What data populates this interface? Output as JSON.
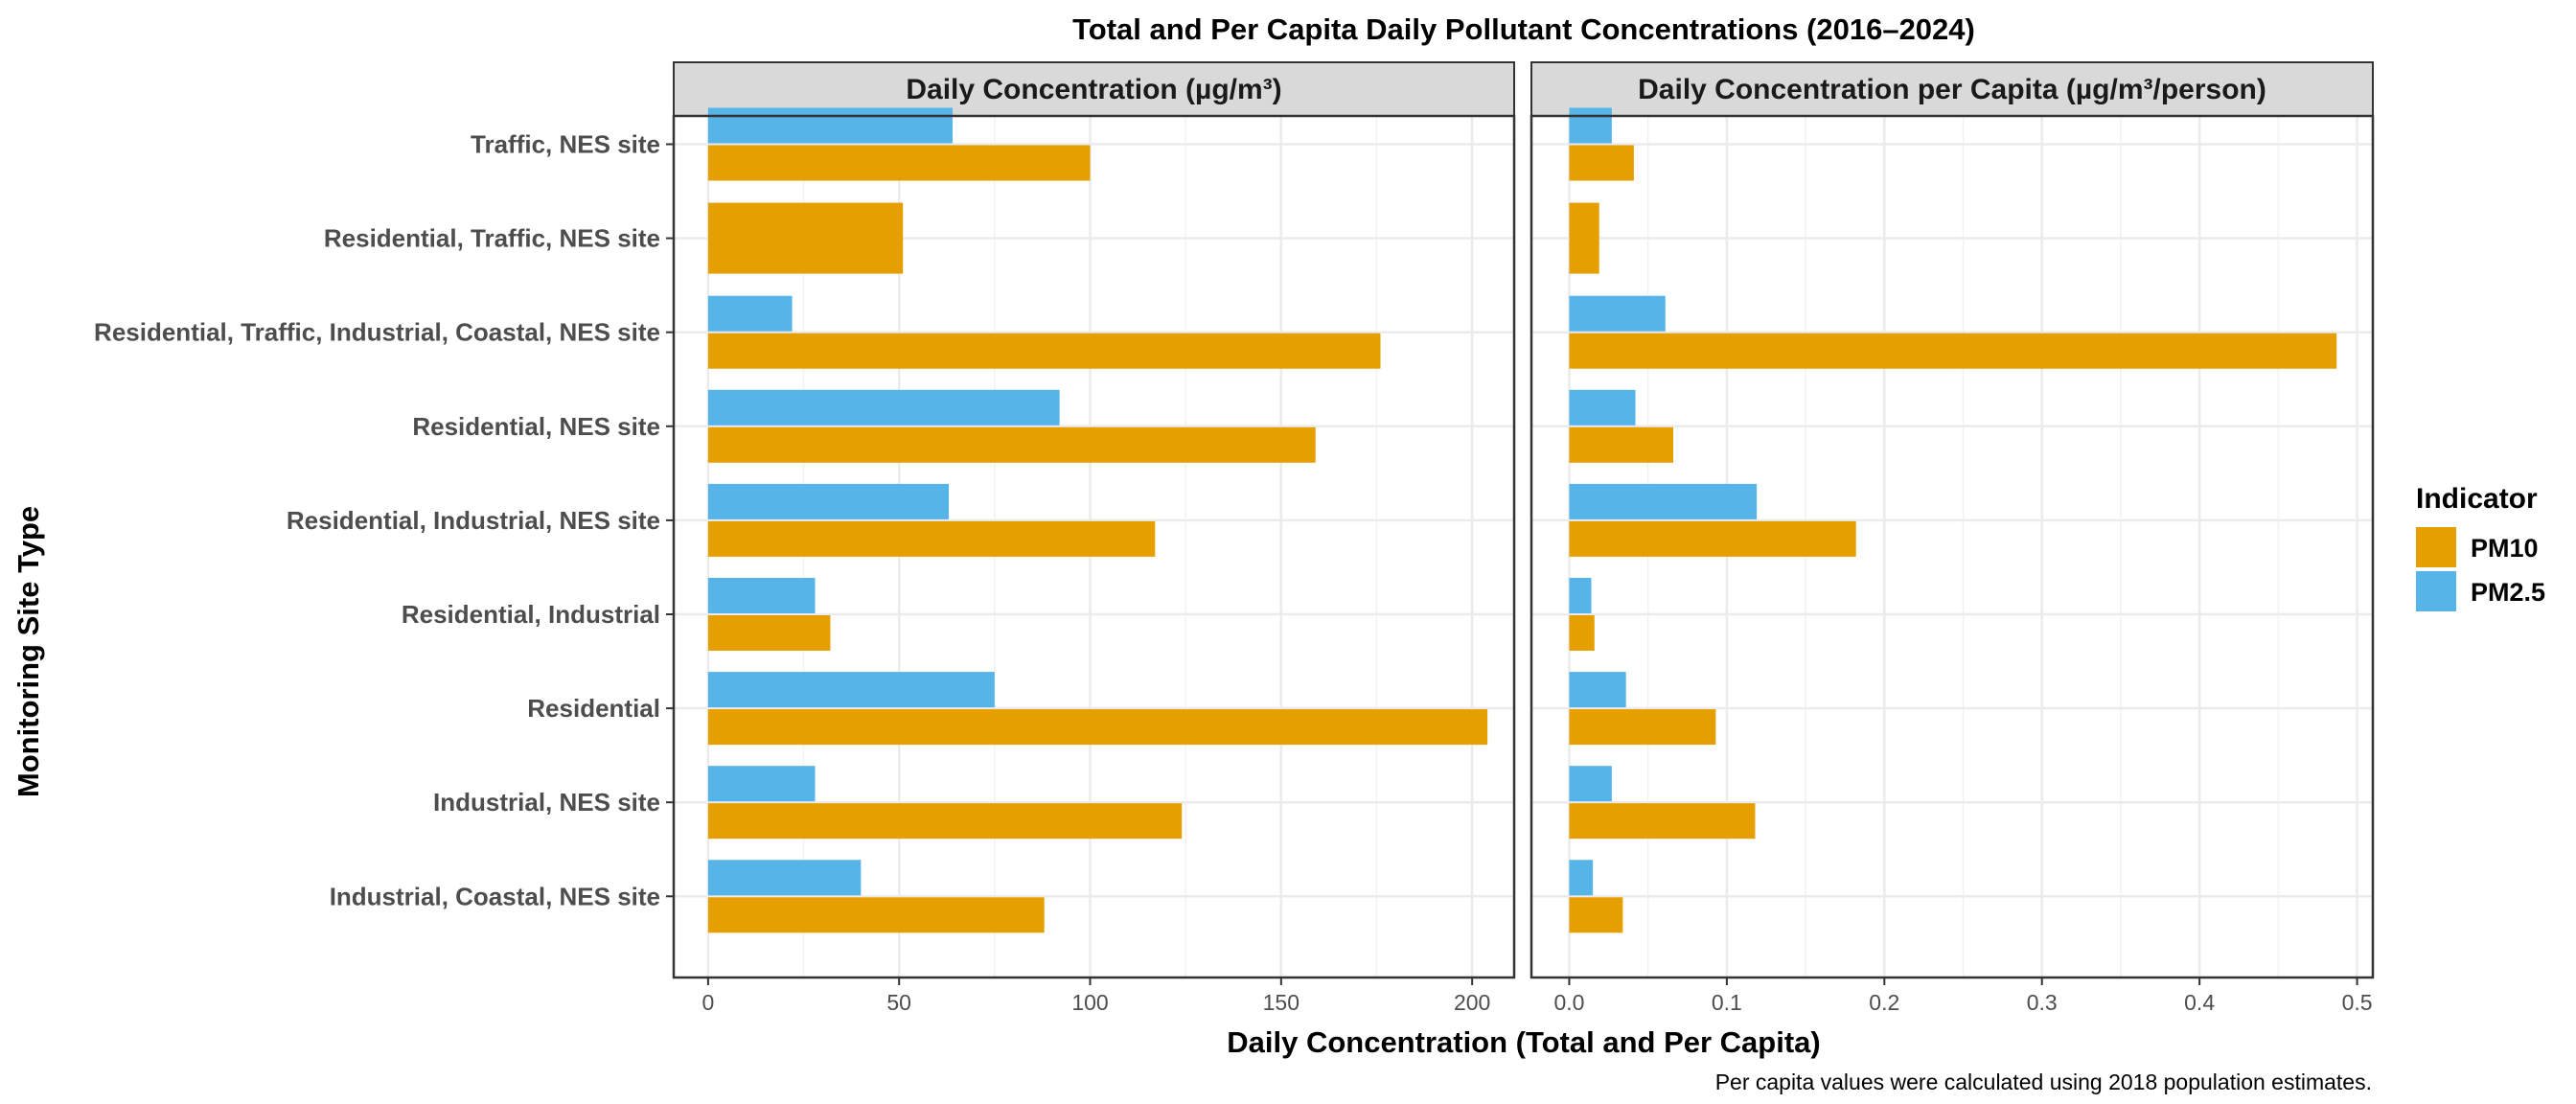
{
  "chart_data": {
    "type": "bar",
    "orientation": "horizontal",
    "title": "Total and Per Capita Daily Pollutant Concentrations (2016–2024)",
    "xlabel": "Daily Concentration (Total and Per Capita)",
    "ylabel": "Monitoring Site Type",
    "caption": "Per capita values were calculated using 2018 population estimates.",
    "legend": {
      "title": "Indicator",
      "position": "right",
      "entries": [
        "PM10",
        "PM2.5"
      ]
    },
    "colors": {
      "PM10": "#E69F00",
      "PM2.5": "#56B4E9"
    },
    "grid": true,
    "categories": [
      "Traffic, NES site",
      "Residential, Traffic, NES site",
      "Residential, Traffic, Industrial, Coastal, NES site",
      "Residential, NES site",
      "Residential, Industrial, NES site",
      "Residential, Industrial",
      "Residential",
      "Industrial, NES site",
      "Industrial, Coastal, NES site"
    ],
    "panels": [
      {
        "strip": "Daily Concentration (µg/m³)",
        "xlim": [
          -9,
          211
        ],
        "ticks": [
          0,
          50,
          100,
          150,
          200
        ],
        "tick_labels": [
          "0",
          "50",
          "100",
          "150",
          "200"
        ],
        "series": [
          {
            "name": "PM10",
            "values": [
              100,
              51,
              176,
              159,
              117,
              32,
              204,
              124,
              88
            ]
          },
          {
            "name": "PM2.5",
            "values": [
              64,
              null,
              22,
              92,
              63,
              28,
              75,
              28,
              40
            ]
          }
        ]
      },
      {
        "strip": "Daily Concentration per Capita (µg/m³/person)",
        "xlim": [
          -0.024,
          0.51
        ],
        "ticks": [
          0,
          0.1,
          0.2,
          0.3,
          0.4,
          0.5
        ],
        "tick_labels": [
          "0.0",
          "0.1",
          "0.2",
          "0.3",
          "0.4",
          "0.5"
        ],
        "series": [
          {
            "name": "PM10",
            "values": [
              0.041,
              0.019,
              0.487,
              0.066,
              0.182,
              0.016,
              0.093,
              0.118,
              0.034
            ]
          },
          {
            "name": "PM2.5",
            "values": [
              0.027,
              null,
              0.061,
              0.042,
              0.119,
              0.014,
              0.036,
              0.027,
              0.015
            ]
          }
        ]
      }
    ]
  }
}
